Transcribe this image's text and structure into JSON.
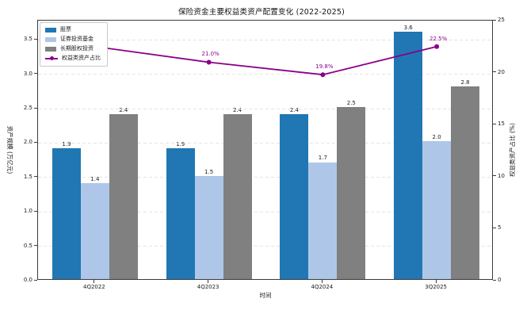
{
  "title": "保险资金主要权益类资产配置变化 (2022-2025)",
  "chart_data": {
    "type": "bar",
    "subtype": "grouped-bar-with-line",
    "title": "保险资金主要权益类资产配置变化 (2022-2025)",
    "categories": [
      "4Q2022",
      "4Q2023",
      "4Q2024",
      "3Q2025"
    ],
    "series": [
      {
        "name": "股票",
        "type": "bar",
        "color": "#2077b4",
        "values": [
          1.9,
          1.9,
          2.4,
          3.6
        ]
      },
      {
        "name": "证券投资基金",
        "type": "bar",
        "color": "#aec7e8",
        "values": [
          1.4,
          1.5,
          1.7,
          2.0
        ]
      },
      {
        "name": "长期股权投资",
        "type": "bar",
        "color": "#808080",
        "values": [
          2.4,
          2.4,
          2.5,
          2.8
        ]
      },
      {
        "name": "权益类资产占比",
        "type": "line",
        "axis": "right",
        "color": "#8b008b",
        "values": [
          22.5,
          21.0,
          19.8,
          22.5
        ],
        "point_labels": [
          "22.5%",
          "21.0%",
          "19.8%",
          "22.5%"
        ]
      }
    ],
    "xlabel": "时间",
    "ylabel_left": "资产规模 (万亿元)",
    "ylabel_right": "权益类资产占比 (%)",
    "ylim_left": [
      0,
      3.78
    ],
    "yticks_left": [
      "0.0",
      "0.5",
      "1.0",
      "1.5",
      "2.0",
      "2.5",
      "3.0",
      "3.5"
    ],
    "ylim_right": [
      0,
      25
    ],
    "yticks_right": [
      "0",
      "5",
      "10",
      "15",
      "20",
      "25"
    ],
    "grid": "horizontal-dashed",
    "legend_position": "upper-left"
  }
}
